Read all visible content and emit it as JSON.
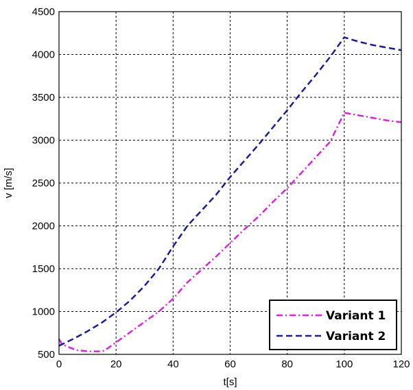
{
  "chart_data": {
    "type": "line",
    "title": "",
    "xlabel": "t[s]",
    "ylabel": "v [m/s]",
    "xlim": [
      0,
      120
    ],
    "ylim": [
      500,
      4500
    ],
    "xticks": [
      0,
      20,
      40,
      60,
      80,
      100,
      120
    ],
    "yticks": [
      500,
      1000,
      1500,
      2000,
      2500,
      3000,
      3500,
      4000,
      4500
    ],
    "grid": true,
    "legend_position": "bottom-right",
    "series": [
      {
        "name": "Variant 1",
        "color": "#e020e0",
        "style": "dash-dot",
        "x": [
          0,
          1,
          3,
          6,
          10,
          15,
          16,
          20,
          25,
          30,
          35,
          40,
          45,
          50,
          55,
          60,
          65,
          70,
          75,
          80,
          85,
          90,
          95,
          100,
          105,
          110,
          115,
          120
        ],
        "y": [
          680,
          620,
          590,
          550,
          535,
          535,
          545,
          640,
          760,
          880,
          1000,
          1150,
          1340,
          1490,
          1640,
          1800,
          1960,
          2110,
          2280,
          2440,
          2620,
          2800,
          2980,
          3320,
          3290,
          3260,
          3230,
          3210
        ]
      },
      {
        "name": "Variant 2",
        "color": "#1a1aa6",
        "style": "dashed",
        "x": [
          0,
          5,
          10,
          15,
          20,
          25,
          30,
          35,
          40,
          45,
          50,
          55,
          60,
          65,
          70,
          75,
          80,
          85,
          90,
          95,
          100,
          105,
          110,
          115,
          120
        ],
        "y": [
          600,
          680,
          770,
          870,
          990,
          1130,
          1300,
          1500,
          1760,
          2000,
          2180,
          2360,
          2570,
          2760,
          2950,
          3150,
          3350,
          3560,
          3760,
          3970,
          4200,
          4150,
          4110,
          4080,
          4050
        ]
      }
    ]
  }
}
